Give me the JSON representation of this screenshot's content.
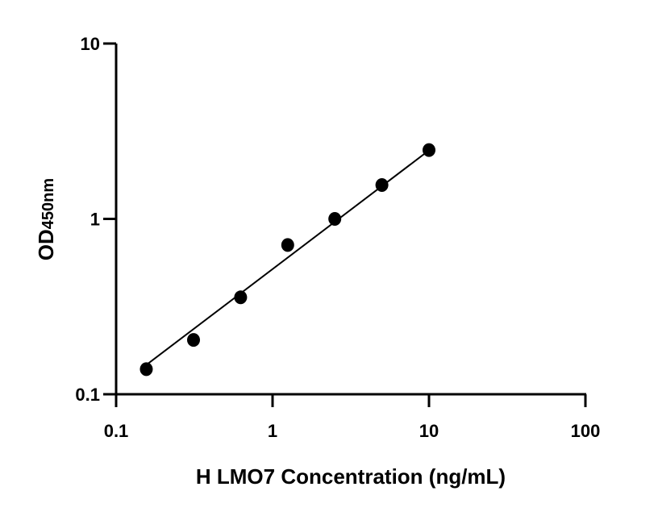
{
  "chart_data": {
    "type": "scatter",
    "title": "",
    "xlabel": "H LMO7 Concentration (ng/mL)",
    "ylabel": "OD",
    "ylabel_subscript": "450nm",
    "x_scale": "log",
    "y_scale": "log",
    "xlim": [
      0.1,
      100
    ],
    "ylim": [
      0.1,
      10
    ],
    "x_ticks": [
      "0.1",
      "1",
      "10",
      "100"
    ],
    "y_ticks": [
      "0.1",
      "1",
      "10"
    ],
    "grid": false,
    "series": [
      {
        "x": [
          0.156,
          0.3125,
          0.625,
          1.25,
          2.5,
          5,
          10
        ],
        "y": [
          0.139,
          0.204,
          0.357,
          0.71,
          1.0,
          1.56,
          2.47
        ],
        "color": "#000000"
      }
    ],
    "fit_line": {
      "x": [
        0.156,
        10
      ],
      "y": [
        0.147,
        2.46
      ],
      "color": "#000000"
    }
  }
}
